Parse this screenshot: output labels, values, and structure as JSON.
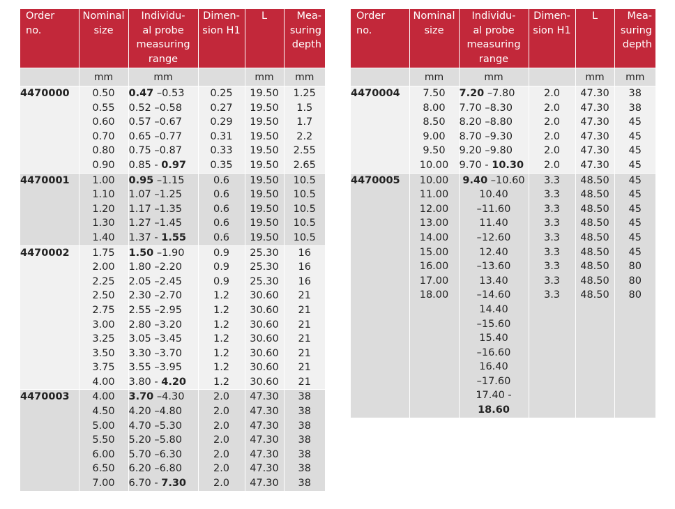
{
  "header": {
    "order": "Order no.",
    "nominal": "Nominal size",
    "range": "Individu-al probe measuring range",
    "dimension": "Dimen-sion H1",
    "length": "L",
    "depth": "Mea-suring depth"
  },
  "header_lines": {
    "order": [
      "Order",
      "no."
    ],
    "nominal": [
      "Nominal",
      "size"
    ],
    "range": [
      "Individu-",
      "al probe",
      "measuring",
      "range"
    ],
    "dimension": [
      "Dimen-",
      "sion H1"
    ],
    "length": [
      "L"
    ],
    "depth": [
      "Mea-",
      "suring",
      "depth"
    ]
  },
  "units": {
    "nominal": "mm",
    "range": "mm",
    "length": "mm",
    "depth": "mm"
  },
  "colors": {
    "header_bg": "#c2283a",
    "units_bg": "#dddddd",
    "row_light": "#f1f1f1",
    "row_dark": "#dcdcdc"
  },
  "left_table": [
    {
      "order": "4470000",
      "nominal": [
        "0.50",
        "0.55",
        "0.60",
        "0.70",
        "0.80",
        "0.90"
      ],
      "range_start": "0.47",
      "range_start_rest": " –0.53",
      "range_mid": [
        "0.52 –0.58",
        "0.57 –0.67",
        "0.65 –0.77",
        "0.75 –0.87"
      ],
      "range_end_pre": "0.85 - ",
      "range_end": "0.97",
      "dimension": [
        "0.25",
        "0.27",
        "0.29",
        "0.31",
        "0.33",
        "0.35"
      ],
      "length": [
        "19.50",
        "19.50",
        "19.50",
        "19.50",
        "19.50",
        "19.50"
      ],
      "depth": [
        "1.25",
        "1.5",
        "1.7",
        "2.2",
        "2.55",
        "2.65"
      ]
    },
    {
      "order": "4470001",
      "nominal": [
        "1.00",
        "1.10",
        "1.20",
        "1.30",
        "1.40"
      ],
      "range_start": "0.95",
      "range_start_rest": " –1.15",
      "range_mid": [
        "1.07 –1.25",
        "1.17 –1.35",
        "1.27 –1.45"
      ],
      "range_end_pre": "1.37 - ",
      "range_end": "1.55",
      "dimension": [
        "0.6",
        "0.6",
        "0.6",
        "0.6",
        "0.6"
      ],
      "length": [
        "19.50",
        "19.50",
        "19.50",
        "19.50",
        "19.50"
      ],
      "depth": [
        "10.5",
        "10.5",
        "10.5",
        "10.5",
        "10.5"
      ]
    },
    {
      "order": "4470002",
      "nominal": [
        "1.75",
        "2.00",
        "2.25",
        "2.50",
        "2.75",
        "3.00",
        "3.25",
        "3.50",
        "3.75",
        "4.00"
      ],
      "range_start": "1.50",
      "range_start_rest": " –1.90",
      "range_mid": [
        "1.80 –2.20",
        "2.05 –2.45",
        "2.30 –2.70",
        "2.55 –2.95",
        "2.80 –3.20",
        "3.05 –3.45",
        "3.30 –3.70",
        "3.55 –3.95"
      ],
      "range_end_pre": "3.80 - ",
      "range_end": "4.20",
      "dimension": [
        "0.9",
        "0.9",
        "0.9",
        "1.2",
        "1.2",
        "1.2",
        "1.2",
        "1.2",
        "1.2",
        "1.2"
      ],
      "length": [
        "25.30",
        "25.30",
        "25.30",
        "30.60",
        "30.60",
        "30.60",
        "30.60",
        "30.60",
        "30.60",
        "30.60"
      ],
      "depth": [
        "16",
        "16",
        "16",
        "21",
        "21",
        "21",
        "21",
        "21",
        "21",
        "21"
      ]
    },
    {
      "order": "4470003",
      "nominal": [
        "4.00",
        "4.50",
        "5.00",
        "5.50",
        "6.00",
        "6.50",
        "7.00"
      ],
      "range_start": "3.70",
      "range_start_rest": " –4.30",
      "range_mid": [
        "4.20 –4.80",
        "4.70 –5.30",
        "5.20 –5.80",
        "5.70 –6.30",
        "6.20 –6.80"
      ],
      "range_end_pre": "6.70 - ",
      "range_end": "7.30",
      "dimension": [
        "2.0",
        "2.0",
        "2.0",
        "2.0",
        "2.0",
        "2.0",
        "2.0"
      ],
      "length": [
        "47.30",
        "47.30",
        "47.30",
        "47.30",
        "47.30",
        "47.30",
        "47.30"
      ],
      "depth": [
        "38",
        "38",
        "38",
        "38",
        "38",
        "38",
        "38"
      ]
    }
  ],
  "right_table": [
    {
      "order": "4470004",
      "nominal": [
        "7.50",
        "8.00",
        "8.50",
        "9.00",
        "9.50",
        "10.00"
      ],
      "range_start": "7.20",
      "range_start_rest": " –7.80",
      "range_mid": [
        "7.70 –8.30",
        "8.20 –8.80",
        "8.70 –9.30",
        "9.20 –9.80"
      ],
      "range_end_pre": "9.70 - ",
      "range_end": "10.30",
      "dimension": [
        "2.0",
        "2.0",
        "2.0",
        "2.0",
        "2.0",
        "2.0"
      ],
      "length": [
        "47.30",
        "47.30",
        "47.30",
        "47.30",
        "47.30",
        "47.30"
      ],
      "depth": [
        "38",
        "38",
        "45",
        "45",
        "45",
        "45"
      ]
    },
    {
      "order": "4470005",
      "nominal": [
        "10.00",
        "11.00",
        "12.00",
        "13.00",
        "14.00",
        "15.00",
        "16.00",
        "17.00",
        "18.00"
      ],
      "range_start": "9.40",
      "range_start_rest": " –10.60",
      "range_mid": [
        "10.40",
        "–11.60",
        "11.40",
        "–12.60",
        "12.40",
        "–13.60",
        "13.40",
        "–14.60",
        "14.40",
        "–15.60",
        "15.40",
        "–16.60",
        "16.40",
        "–17.60"
      ],
      "range_end_pre": "17.40 -",
      "range_end": "18.60",
      "dimension": [
        "3.3",
        "3.3",
        "3.3",
        "3.3",
        "3.3",
        "3.3",
        "3.3",
        "3.3",
        "3.3"
      ],
      "length": [
        "48.50",
        "48.50",
        "48.50",
        "48.50",
        "48.50",
        "48.50",
        "48.50",
        "48.50",
        "48.50"
      ],
      "depth": [
        "45",
        "45",
        "45",
        "45",
        "45",
        "45",
        "80",
        "80",
        "80"
      ]
    }
  ]
}
